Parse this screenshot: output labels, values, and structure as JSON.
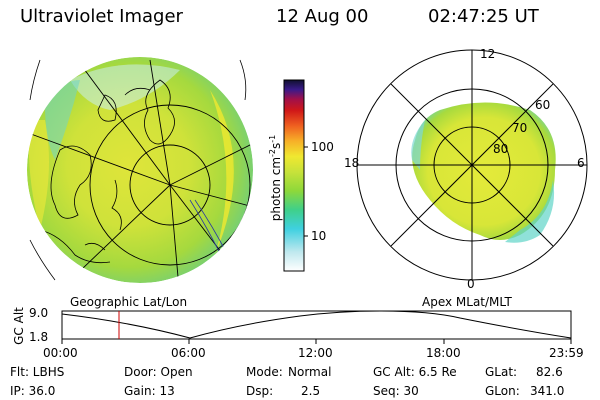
{
  "header": {
    "instrument": "Ultraviolet Imager",
    "date": "12 Aug 00",
    "time": "02:47:25 UT"
  },
  "colorbar": {
    "label": "photon cm",
    "exp1": "-2",
    "unit_s": "s",
    "exp2": "-1",
    "ticks": [
      "100",
      "10"
    ]
  },
  "polar": {
    "mlt_labels": {
      "top": "12",
      "left": "18",
      "right": "6",
      "bottom": "0"
    },
    "lat_labels": [
      "60",
      "70",
      "80"
    ]
  },
  "panels": {
    "geo_caption": "Geographic Lat/Lon",
    "apex_caption": "Apex MLat/MLT"
  },
  "altitude_plot": {
    "ylabel": "GC Alt",
    "yticks": [
      "9.0",
      "1.8"
    ],
    "xticks": [
      "00:00",
      "06:00",
      "12:00",
      "18:00",
      "23:59"
    ]
  },
  "info": {
    "flt": "Flt: LBHS",
    "ip": "IP: 36.0",
    "door": "Door: Open",
    "gain": "Gain: 13",
    "mode_label": "Mode:",
    "mode_value": "Normal",
    "dsp_label": "Dsp:",
    "dsp_value": "2.5",
    "gcalt": "GC Alt: 6.5 Re",
    "seq": "Seq: 30",
    "glat_label": "GLat:",
    "glat_value": "82.6",
    "glon_label": "GLon:",
    "glon_value": "341.0"
  },
  "colors": {
    "aurora_yellow": "#e8e830",
    "aurora_green": "#9ed83a",
    "aurora_cyan": "#4fd6d8",
    "orbit_marker": "#cc0000"
  }
}
